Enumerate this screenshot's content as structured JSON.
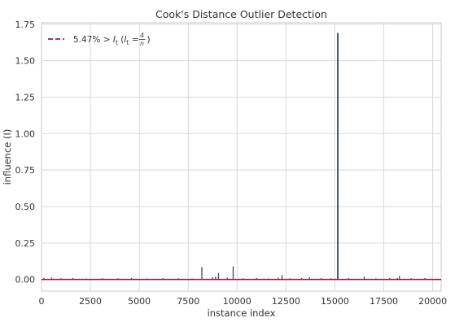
{
  "chart_data": {
    "type": "line",
    "title": "Cook's Distance Outlier Detection",
    "xlabel": "instance index",
    "ylabel": "influence (I)",
    "xlim": [
      0,
      20433
    ],
    "ylim": [
      -0.08,
      1.76
    ],
    "xticks": [
      0,
      2500,
      5000,
      7500,
      10000,
      12500,
      15000,
      17500,
      20000
    ],
    "yticks": [
      0.0,
      0.25,
      0.5,
      0.75,
      1.0,
      1.25,
      1.5,
      1.75
    ],
    "xtick_labels": [
      "0",
      "2500",
      "5000",
      "7500",
      "10000",
      "12500",
      "15000",
      "17500",
      "20000"
    ],
    "ytick_labels": [
      "0.00",
      "0.25",
      "0.50",
      "0.75",
      "1.00",
      "1.25",
      "1.50",
      "1.75"
    ],
    "grid": true,
    "legend": {
      "placement": "top-left",
      "entry": "5.47% > I_t (I_t = 4/n)",
      "prefix": "5.47% > ",
      "sym": "I",
      "sub": "t",
      "open": " (",
      "eq": " = ",
      "frac_num": "4",
      "frac_den": "n",
      "close": ")"
    },
    "series": [
      {
        "kind": "stems",
        "x": [
          120,
          520,
          1000,
          1600,
          2300,
          3100,
          3900,
          4600,
          5400,
          6200,
          7000,
          7700,
          8200,
          8750,
          8900,
          9050,
          9500,
          9800,
          10300,
          11000,
          11600,
          12100,
          12300,
          12700,
          13300,
          13700,
          14300,
          14800,
          15150,
          15700,
          16500,
          17100,
          17800,
          18200,
          18300,
          18900,
          19600,
          20200
        ],
        "y": [
          0.01,
          0.012,
          0.008,
          0.01,
          0.006,
          0.009,
          0.008,
          0.01,
          0.007,
          0.009,
          0.008,
          0.006,
          0.085,
          0.015,
          0.02,
          0.045,
          0.012,
          0.09,
          0.008,
          0.01,
          0.007,
          0.012,
          0.03,
          0.008,
          0.01,
          0.015,
          0.01,
          0.008,
          1.69,
          0.01,
          0.02,
          0.008,
          0.01,
          0.01,
          0.025,
          0.008,
          0.01,
          0.006
        ]
      },
      {
        "kind": "threshold",
        "y": 0.0002
      }
    ]
  },
  "colors": {
    "stem": "#4a5566",
    "threshold": "#a0164a",
    "grid": "#d9d9d9",
    "frame": "#c8c8c8",
    "text": "#333333"
  }
}
